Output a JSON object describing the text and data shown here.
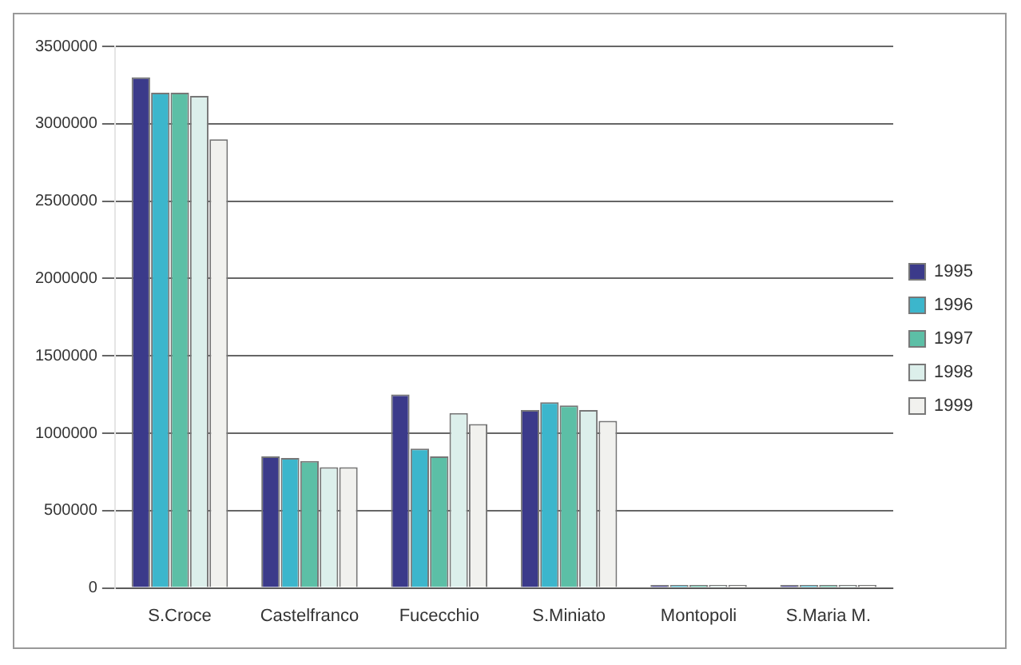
{
  "chart_data": {
    "type": "bar",
    "categories": [
      "S.Croce",
      "Castelfranco",
      "Fucecchio",
      "S.Miniato",
      "Montopoli",
      "S.Maria M."
    ],
    "series": [
      {
        "name": "1995",
        "color": "#3b3a8a",
        "values": [
          3300000,
          850000,
          1250000,
          1150000,
          20000,
          20000
        ]
      },
      {
        "name": "1996",
        "color": "#3cb6cc",
        "values": [
          3200000,
          840000,
          900000,
          1200000,
          20000,
          20000
        ]
      },
      {
        "name": "1997",
        "color": "#5cbfa6",
        "values": [
          3200000,
          820000,
          850000,
          1180000,
          20000,
          20000
        ]
      },
      {
        "name": "1998",
        "color": "#dcefeb",
        "values": [
          3180000,
          780000,
          1130000,
          1150000,
          20000,
          20000
        ]
      },
      {
        "name": "1999",
        "color": "#f1f1ee",
        "values": [
          2900000,
          780000,
          1060000,
          1080000,
          20000,
          20000
        ]
      }
    ],
    "ylim": [
      0,
      3500000
    ],
    "yticks": [
      0,
      500000,
      1000000,
      1500000,
      2000000,
      2500000,
      3000000,
      3500000
    ],
    "grid": "y",
    "legend": "right"
  }
}
